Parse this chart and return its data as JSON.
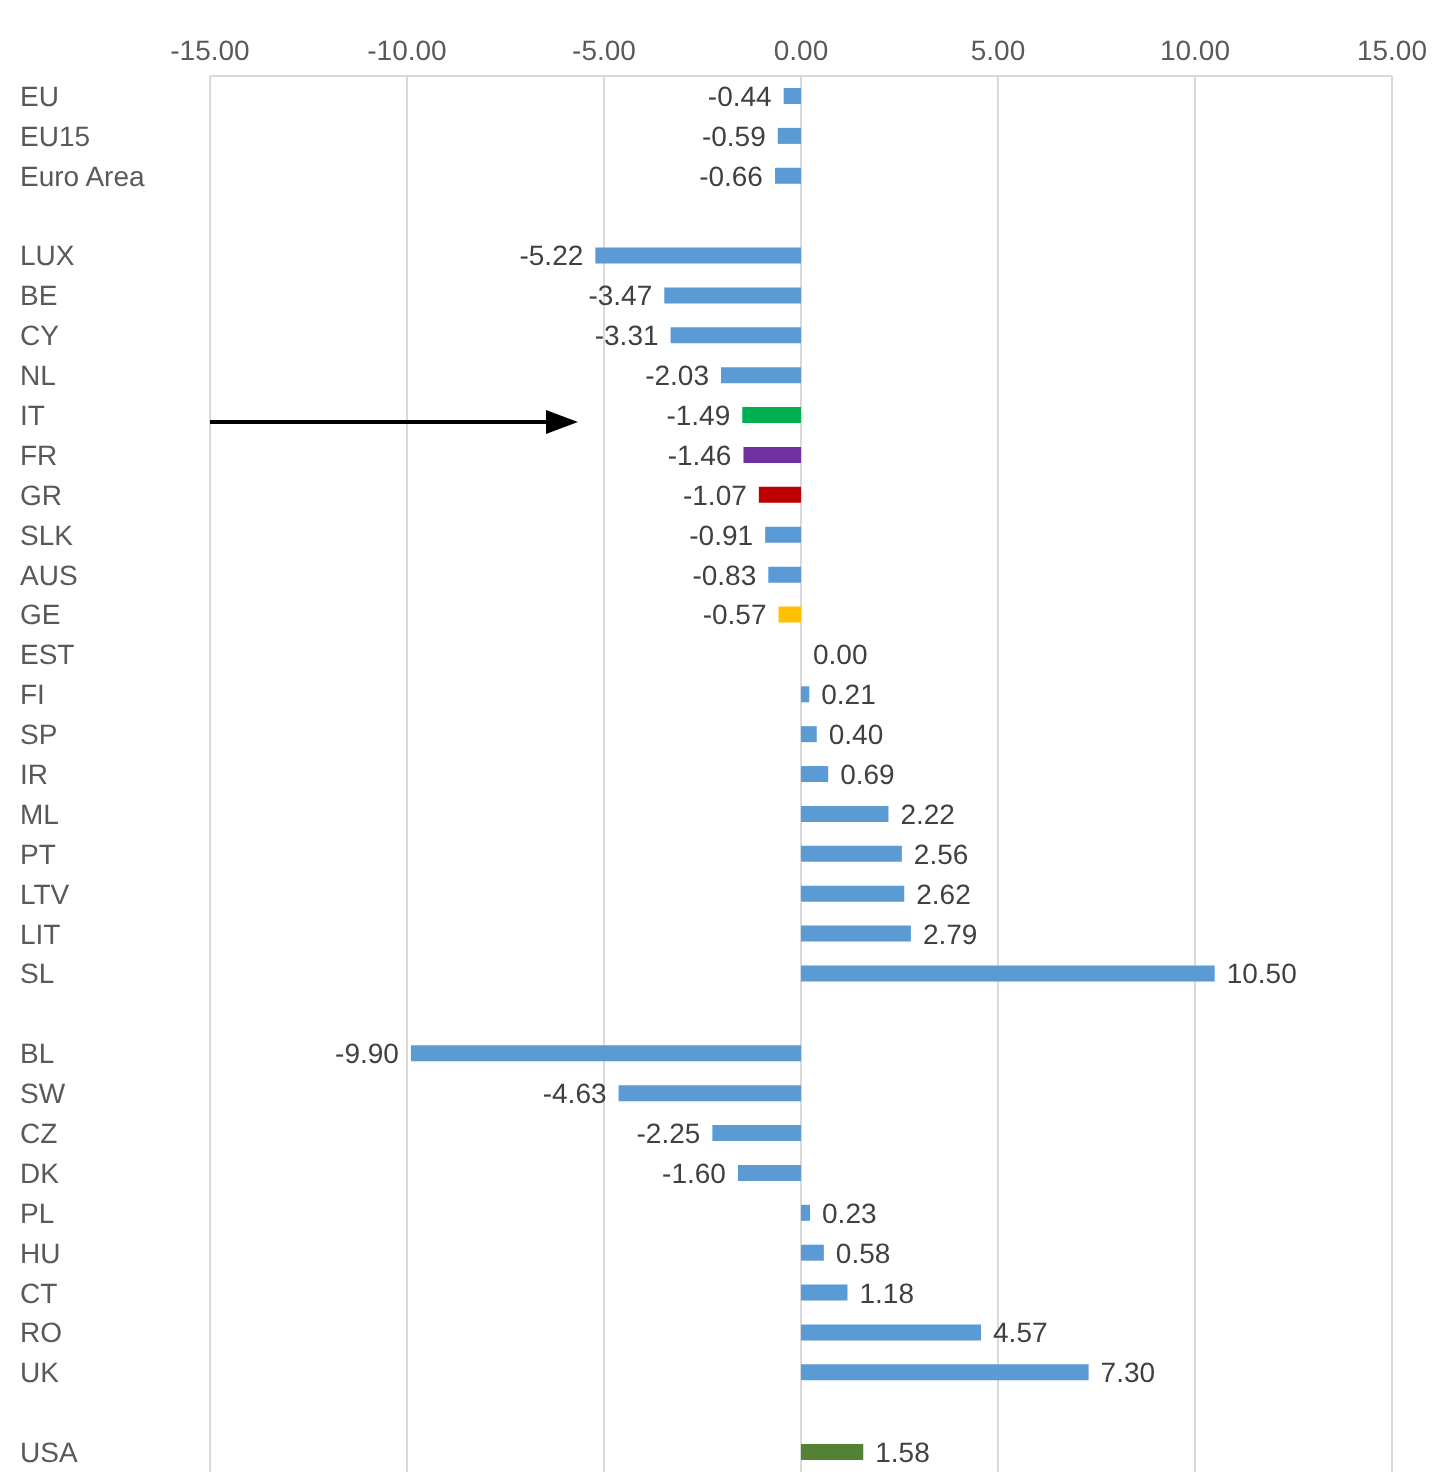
{
  "chart_data": {
    "type": "bar",
    "orientation": "horizontal",
    "categories": [
      "EU",
      "EU15",
      "Euro Area",
      null,
      "LUX",
      "BE",
      "CY",
      "NL",
      "IT",
      "FR",
      "GR",
      "SLK",
      "AUS",
      "GE",
      "EST",
      "FI",
      "SP",
      "IR",
      "ML",
      "PT",
      "LTV",
      "LIT",
      "SL",
      null,
      "BL",
      "SW",
      "CZ",
      "DK",
      "PL",
      "HU",
      "CT",
      "RO",
      "UK",
      null,
      "USA"
    ],
    "values": [
      -0.44,
      -0.59,
      -0.66,
      null,
      -5.22,
      -3.47,
      -3.31,
      -2.03,
      -1.49,
      -1.46,
      -1.07,
      -0.91,
      -0.83,
      -0.57,
      0,
      0.21,
      0.4,
      0.69,
      2.22,
      2.56,
      2.62,
      2.79,
      10.5,
      null,
      -9.9,
      -4.63,
      -2.25,
      -1.6,
      0.23,
      0.58,
      1.18,
      4.57,
      7.3,
      null,
      1.58
    ],
    "value_labels": [
      "-0.44",
      "-0.59",
      "-0.66",
      null,
      "-5.22",
      "-3.47",
      "-3.31",
      "-2.03",
      "-1.49",
      "-1.46",
      "-1.07",
      "-0.91",
      "-0.83",
      "-0.57",
      "0.00",
      "0.21",
      "0.40",
      "0.69",
      "2.22",
      "2.56",
      "2.62",
      "2.79",
      "10.50",
      null,
      "-9.90",
      "-4.63",
      "-2.25",
      "-1.60",
      "0.23",
      "0.58",
      "1.18",
      "4.57",
      "7.30",
      null,
      "1.58"
    ],
    "colors": [
      "#5b9bd5",
      "#5b9bd5",
      "#5b9bd5",
      "#5b9bd5",
      "#5b9bd5",
      "#5b9bd5",
      "#5b9bd5",
      "#5b9bd5",
      "#00b050",
      "#7030a0",
      "#c00000",
      "#5b9bd5",
      "#5b9bd5",
      "#ffc000",
      "#5b9bd5",
      "#5b9bd5",
      "#5b9bd5",
      "#5b9bd5",
      "#5b9bd5",
      "#5b9bd5",
      "#5b9bd5",
      "#5b9bd5",
      "#5b9bd5",
      "#5b9bd5",
      "#5b9bd5",
      "#5b9bd5",
      "#5b9bd5",
      "#5b9bd5",
      "#5b9bd5",
      "#5b9bd5",
      "#5b9bd5",
      "#5b9bd5",
      "#5b9bd5",
      "#5b9bd5",
      "#548235"
    ],
    "xlim": [
      -15,
      15
    ],
    "xticks": [
      {
        "value": -15,
        "label": "-15.00"
      },
      {
        "value": -10,
        "label": "-10.00"
      },
      {
        "value": -5,
        "label": "-5.00"
      },
      {
        "value": 0,
        "label": "0.00"
      },
      {
        "value": 5,
        "label": "5.00"
      },
      {
        "value": 10,
        "label": "10.00"
      },
      {
        "value": 15,
        "label": "15.00"
      }
    ],
    "grid": "x",
    "legend": false
  }
}
